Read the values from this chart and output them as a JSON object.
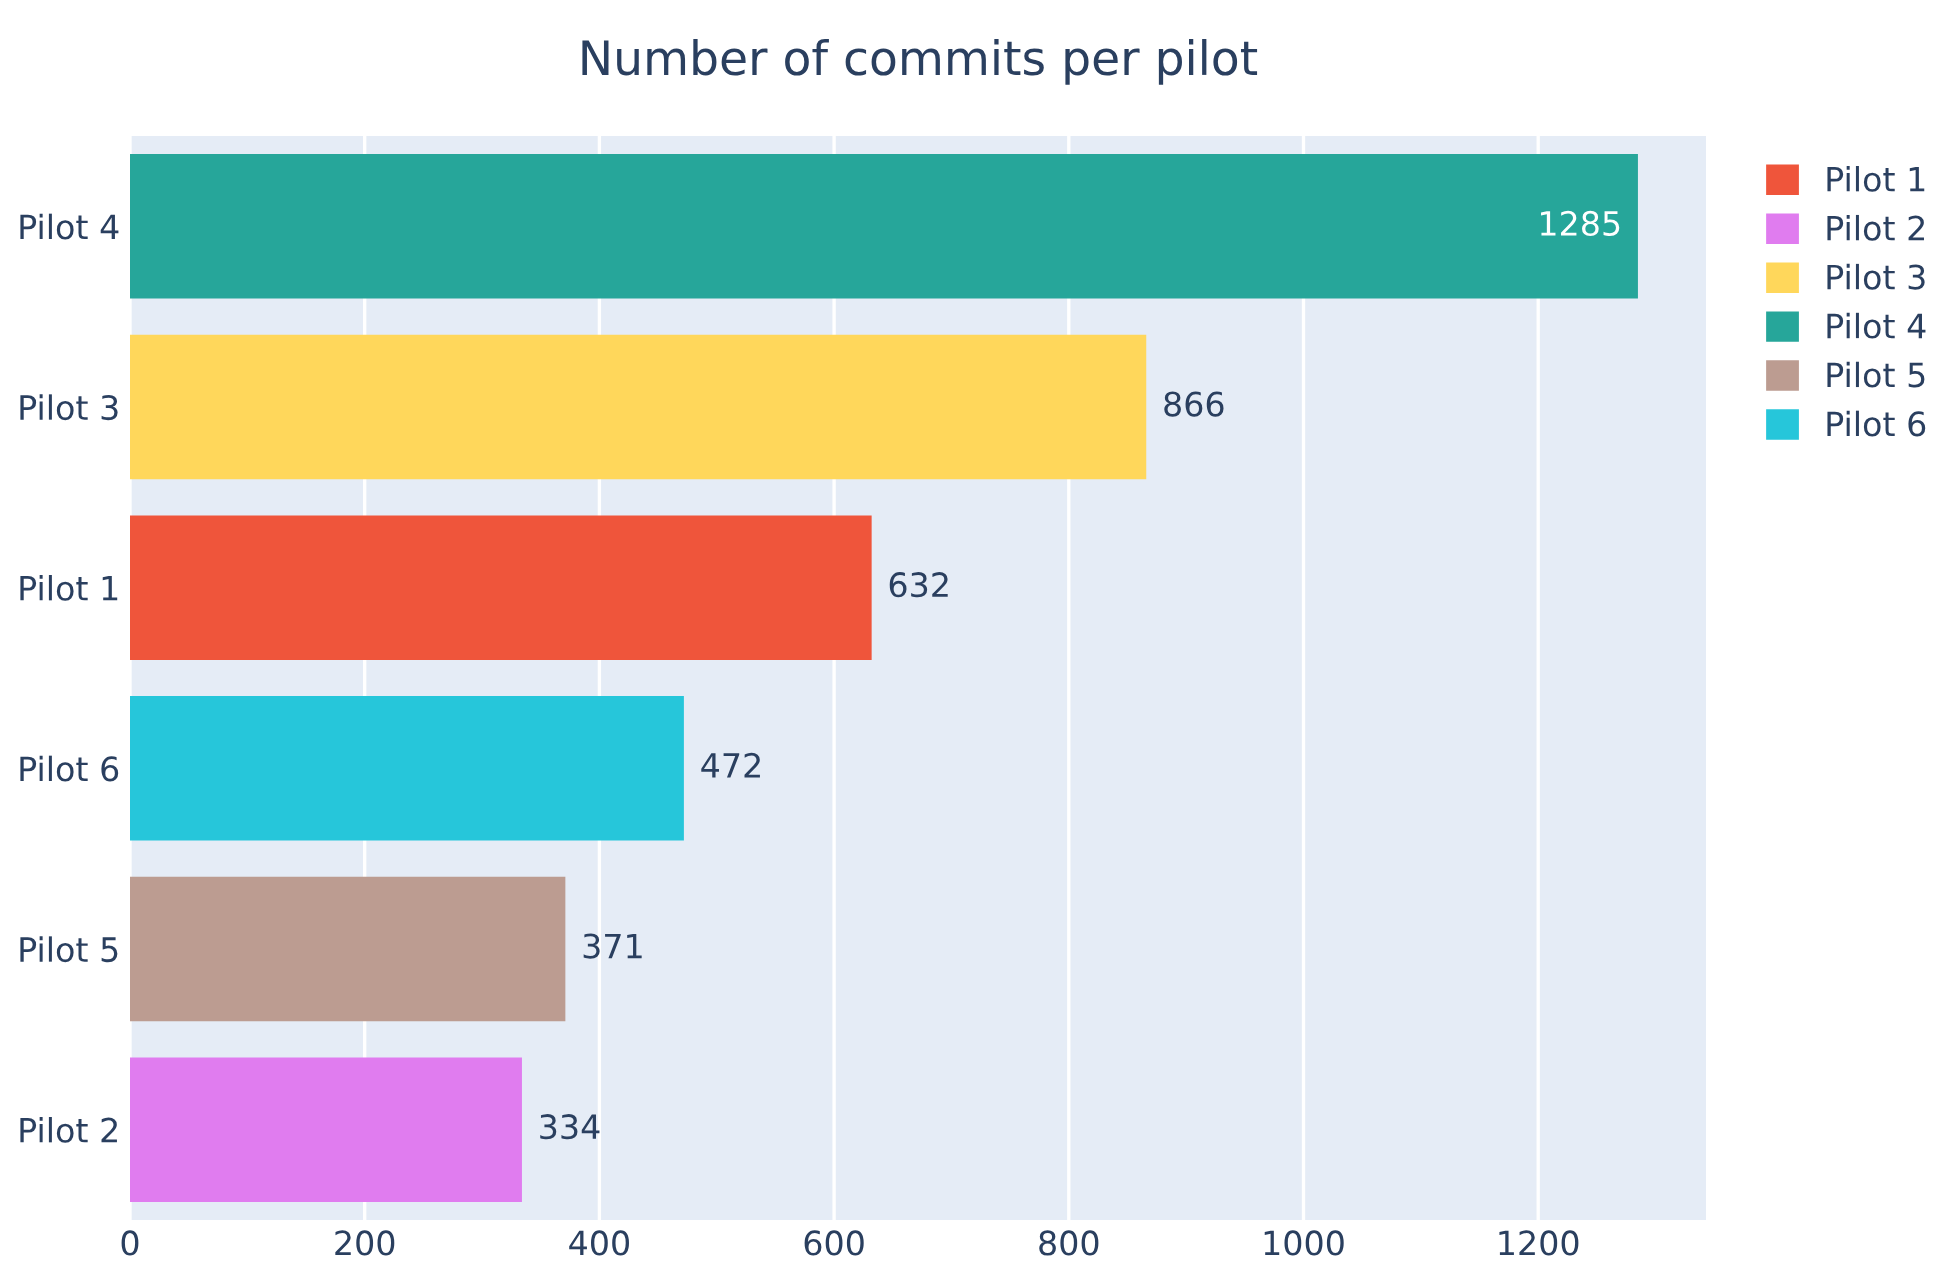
{
  "chart_data": {
    "type": "bar",
    "orientation": "horizontal",
    "title": "Number of commits per pilot",
    "categories": [
      "Pilot 4",
      "Pilot 3",
      "Pilot 1",
      "Pilot 6",
      "Pilot 5",
      "Pilot 2"
    ],
    "series": [
      {
        "name": "Pilot 1",
        "color": "#ef553b",
        "values": [
          null,
          null,
          632,
          null,
          null,
          null
        ]
      },
      {
        "name": "Pilot 2",
        "color": "#e07cef",
        "values": [
          null,
          null,
          null,
          null,
          null,
          334
        ]
      },
      {
        "name": "Pilot 3",
        "color": "#ffd75b",
        "values": [
          null,
          866,
          null,
          null,
          null,
          null
        ]
      },
      {
        "name": "Pilot 4",
        "color": "#26a69a",
        "values": [
          1285,
          null,
          null,
          null,
          null,
          null
        ]
      },
      {
        "name": "Pilot 5",
        "color": "#bc9c91",
        "values": [
          null,
          null,
          null,
          null,
          371,
          null
        ]
      },
      {
        "name": "Pilot 6",
        "color": "#26c6da",
        "values": [
          null,
          null,
          null,
          472,
          null,
          null
        ]
      }
    ],
    "xlim": [
      0,
      1343
    ],
    "xticks": [
      0,
      200,
      400,
      600,
      800,
      1000,
      1200
    ],
    "grid": "x",
    "legend": "top right",
    "data_labels": true
  }
}
